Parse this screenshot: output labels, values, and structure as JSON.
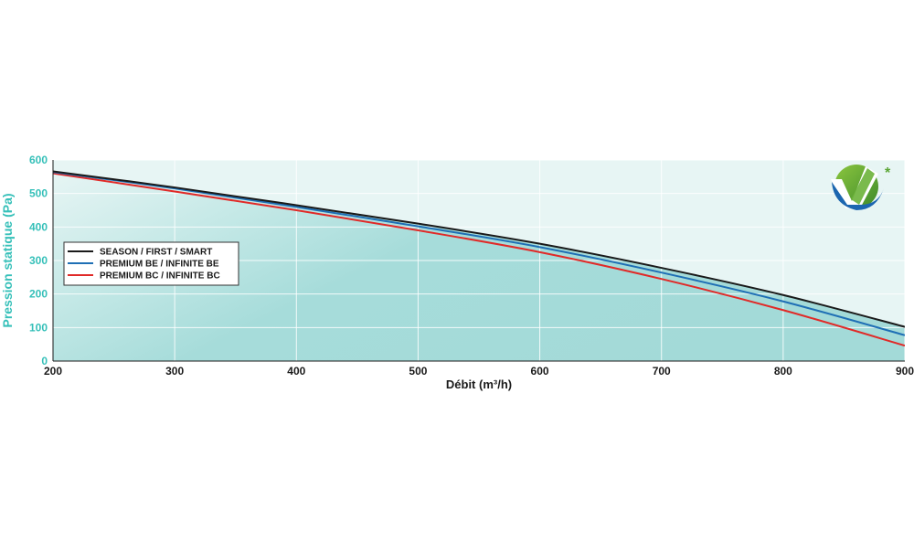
{
  "chart_data": {
    "type": "line",
    "xlabel": "Débit (m³/h)",
    "ylabel": "Pression statique (Pa)",
    "xlim": [
      200,
      900
    ],
    "ylim": [
      0,
      600
    ],
    "x_ticks": [
      "200",
      "300",
      "400",
      "500",
      "600",
      "700",
      "800",
      "900"
    ],
    "y_ticks": [
      "0",
      "100",
      "200",
      "300",
      "400",
      "500",
      "600"
    ],
    "grid": true,
    "legend_position": "left-middle",
    "series": [
      {
        "name": "SEASON / FIRST / SMART",
        "color": "#1a1a1a",
        "x": [
          200,
          300,
          400,
          500,
          600,
          700,
          800,
          900
        ],
        "y": [
          566,
          518,
          465,
          410,
          350,
          278,
          197,
          102
        ]
      },
      {
        "name": "PREMIUM BE / INFINITE BE",
        "color": "#1f6fb5",
        "x": [
          200,
          300,
          400,
          500,
          600,
          700,
          800,
          900
        ],
        "y": [
          564,
          515,
          460,
          402,
          340,
          264,
          178,
          77
        ]
      },
      {
        "name": "PREMIUM BC / INFINITE BC",
        "color": "#e02a28",
        "x": [
          200,
          300,
          400,
          500,
          600,
          700,
          800,
          900
        ],
        "y": [
          560,
          506,
          450,
          390,
          325,
          245,
          152,
          46
        ]
      }
    ]
  },
  "colors": {
    "plot_background": "#e7f5f4",
    "area_fill": "#a3dad8",
    "axis_accent": "#36c0b9",
    "logo_green": "#5ba534",
    "logo_blue": "#1c66b0"
  },
  "logo": {
    "icon": "checkmark-logo-icon",
    "asterisk": "*"
  }
}
